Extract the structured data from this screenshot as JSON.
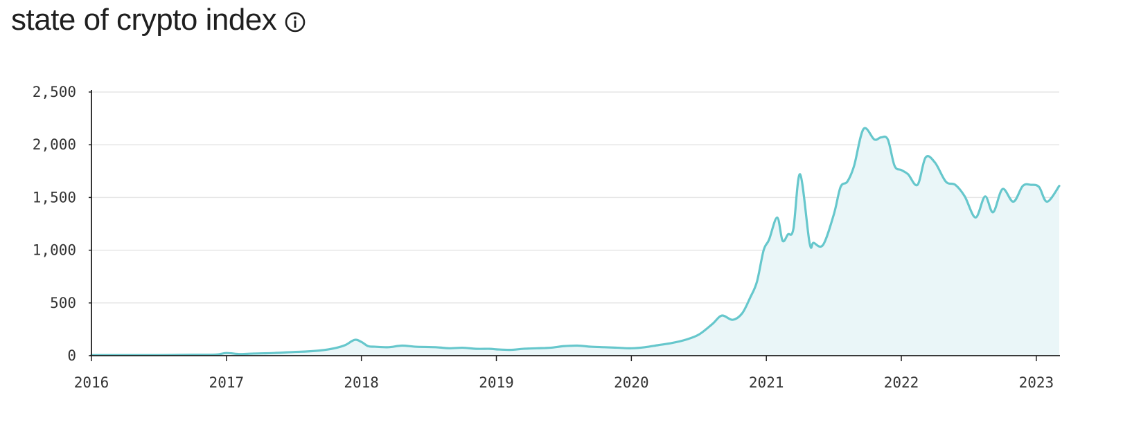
{
  "header": {
    "title": "state of crypto index",
    "info_icon": "info-icon"
  },
  "colors": {
    "line": "#66c7cc",
    "fill": "#eaf6f8",
    "grid": "#e6e6e6",
    "axis": "#1f1f1f",
    "text": "#333333"
  },
  "chart_data": {
    "type": "area",
    "title": "state of crypto index",
    "xlabel": "",
    "ylabel": "",
    "xlim": [
      2016.0,
      2023.17
    ],
    "ylim": [
      0,
      2500
    ],
    "x_ticks": [
      2016,
      2017,
      2018,
      2019,
      2020,
      2021,
      2022,
      2023
    ],
    "x_tick_labels": [
      "2016",
      "2017",
      "2018",
      "2019",
      "2020",
      "2021",
      "2022",
      "2023"
    ],
    "y_ticks": [
      0,
      500,
      1000,
      1500,
      2000,
      2500
    ],
    "y_tick_labels": [
      "0",
      "500",
      "1,000",
      "1,500",
      "2,000",
      "2,500"
    ],
    "grid": "horizontal",
    "series": [
      {
        "x": [
          2016.0,
          2016.25,
          2016.5,
          2016.75,
          2016.92,
          2017.0,
          2017.1,
          2017.2,
          2017.35,
          2017.5,
          2017.6,
          2017.7,
          2017.8,
          2017.88,
          2017.95,
          2018.0,
          2018.05,
          2018.1,
          2018.2,
          2018.3,
          2018.4,
          2018.55,
          2018.65,
          2018.75,
          2018.85,
          2018.95,
          2019.0,
          2019.1,
          2019.2,
          2019.3,
          2019.4,
          2019.5,
          2019.6,
          2019.7,
          2019.8,
          2019.9,
          2020.0,
          2020.1,
          2020.2,
          2020.3,
          2020.4,
          2020.5,
          2020.6,
          2020.67,
          2020.75,
          2020.82,
          2020.88,
          2020.93,
          2020.98,
          2021.02,
          2021.08,
          2021.12,
          2021.16,
          2021.2,
          2021.25,
          2021.32,
          2021.35,
          2021.42,
          2021.5,
          2021.55,
          2021.6,
          2021.65,
          2021.72,
          2021.8,
          2021.85,
          2021.9,
          2021.95,
          2022.0,
          2022.05,
          2022.12,
          2022.18,
          2022.25,
          2022.33,
          2022.4,
          2022.47,
          2022.55,
          2022.62,
          2022.68,
          2022.75,
          2022.83,
          2022.9,
          2022.96,
          2023.02,
          2023.08,
          2023.17
        ],
        "values": [
          5,
          5,
          5,
          8,
          10,
          25,
          15,
          20,
          25,
          35,
          40,
          50,
          70,
          100,
          150,
          130,
          90,
          85,
          80,
          95,
          85,
          80,
          70,
          75,
          65,
          65,
          60,
          55,
          65,
          70,
          75,
          90,
          95,
          85,
          80,
          75,
          70,
          80,
          100,
          120,
          150,
          200,
          300,
          380,
          340,
          400,
          550,
          700,
          1000,
          1100,
          1310,
          1090,
          1150,
          1200,
          1720,
          1070,
          1070,
          1050,
          1340,
          1600,
          1650,
          1800,
          2150,
          2050,
          2070,
          2050,
          1800,
          1760,
          1720,
          1620,
          1880,
          1830,
          1650,
          1620,
          1510,
          1310,
          1510,
          1360,
          1580,
          1460,
          1610,
          1620,
          1600,
          1460,
          1610
        ]
      }
    ]
  }
}
